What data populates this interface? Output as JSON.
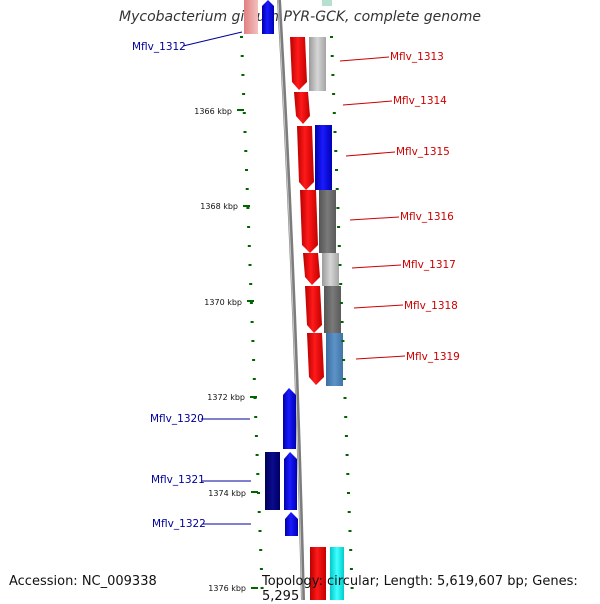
{
  "title": "Mycobacterium gilvum PYR-GCK, complete genome",
  "footer": {
    "accession": "Accession: NC_009338",
    "topology": "Topology: circular; Length: 5,619,607 bp; Genes: 5,295"
  },
  "colors": {
    "forward_gene": "#ff0000",
    "reverse_gene": "#0000ff",
    "forward_label": "#cc0000",
    "reverse_label": "#000099",
    "backbone": "#808080",
    "scale_ticks": "#006400"
  },
  "scale": {
    "labels": [
      "1366 kbp",
      "1368 kbp",
      "1370 kbp",
      "1372 kbp",
      "1374 kbp",
      "1376 kbp"
    ]
  },
  "genes": [
    {
      "label": "Mflv_1312",
      "strand": "reverse"
    },
    {
      "label": "Mflv_1313",
      "strand": "forward"
    },
    {
      "label": "Mflv_1314",
      "strand": "forward"
    },
    {
      "label": "Mflv_1315",
      "strand": "forward"
    },
    {
      "label": "Mflv_1316",
      "strand": "forward"
    },
    {
      "label": "Mflv_1317",
      "strand": "forward"
    },
    {
      "label": "Mflv_1318",
      "strand": "forward"
    },
    {
      "label": "Mflv_1319",
      "strand": "forward"
    },
    {
      "label": "Mflv_1320",
      "strand": "reverse"
    },
    {
      "label": "Mflv_1321",
      "strand": "reverse"
    },
    {
      "label": "Mflv_1322",
      "strand": "reverse"
    }
  ]
}
